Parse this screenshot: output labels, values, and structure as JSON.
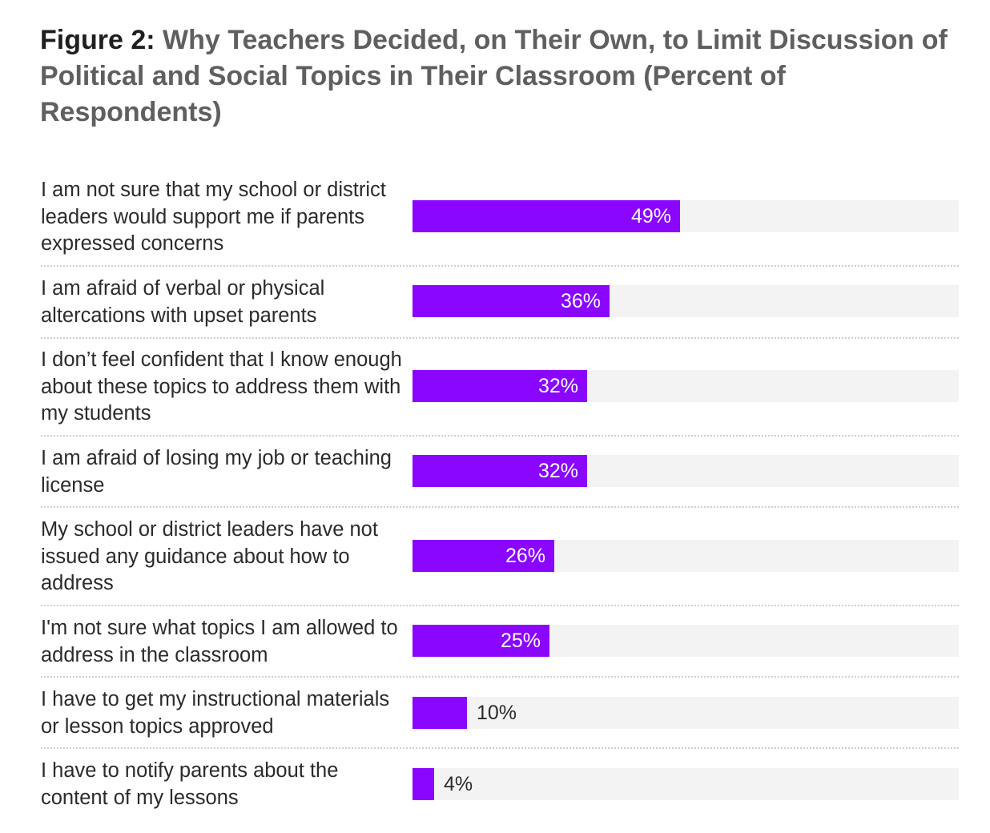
{
  "title": {
    "lead": "Figure 2:",
    "text": "Why Teachers Decided, on Their Own, to Limit Discussion of Political and Social Topics in Their Classroom (Percent of Respondents)"
  },
  "colors": {
    "bar": "#8a06ff",
    "track": "#f3f3f3"
  },
  "chart_data": {
    "type": "bar",
    "orientation": "horizontal",
    "title": "Figure 2: Why Teachers Decided, on Their Own, to Limit Discussion of Political and Social Topics in Their Classroom (Percent of Respondents)",
    "xlim": [
      0,
      100
    ],
    "grid": false,
    "categories": [
      "I am not sure that my school or district leaders would support me if parents expressed concerns",
      "I am afraid of verbal or physical altercations with upset parents",
      "I don’t feel confident that I know enough about these topics to address them with my students",
      "I am afraid of losing my job or teaching license",
      "My school or district leaders have not issued any guidance about how to address",
      "I'm not sure what topics I am allowed to address in the classroom",
      "I have to get my instructional materials or lesson topics approved",
      "I have to notify parents about the content of my lessons"
    ],
    "values": [
      49,
      36,
      32,
      32,
      26,
      25,
      10,
      4
    ],
    "value_labels": [
      "49%",
      "36%",
      "32%",
      "32%",
      "26%",
      "25%",
      "10%",
      "4%"
    ]
  }
}
